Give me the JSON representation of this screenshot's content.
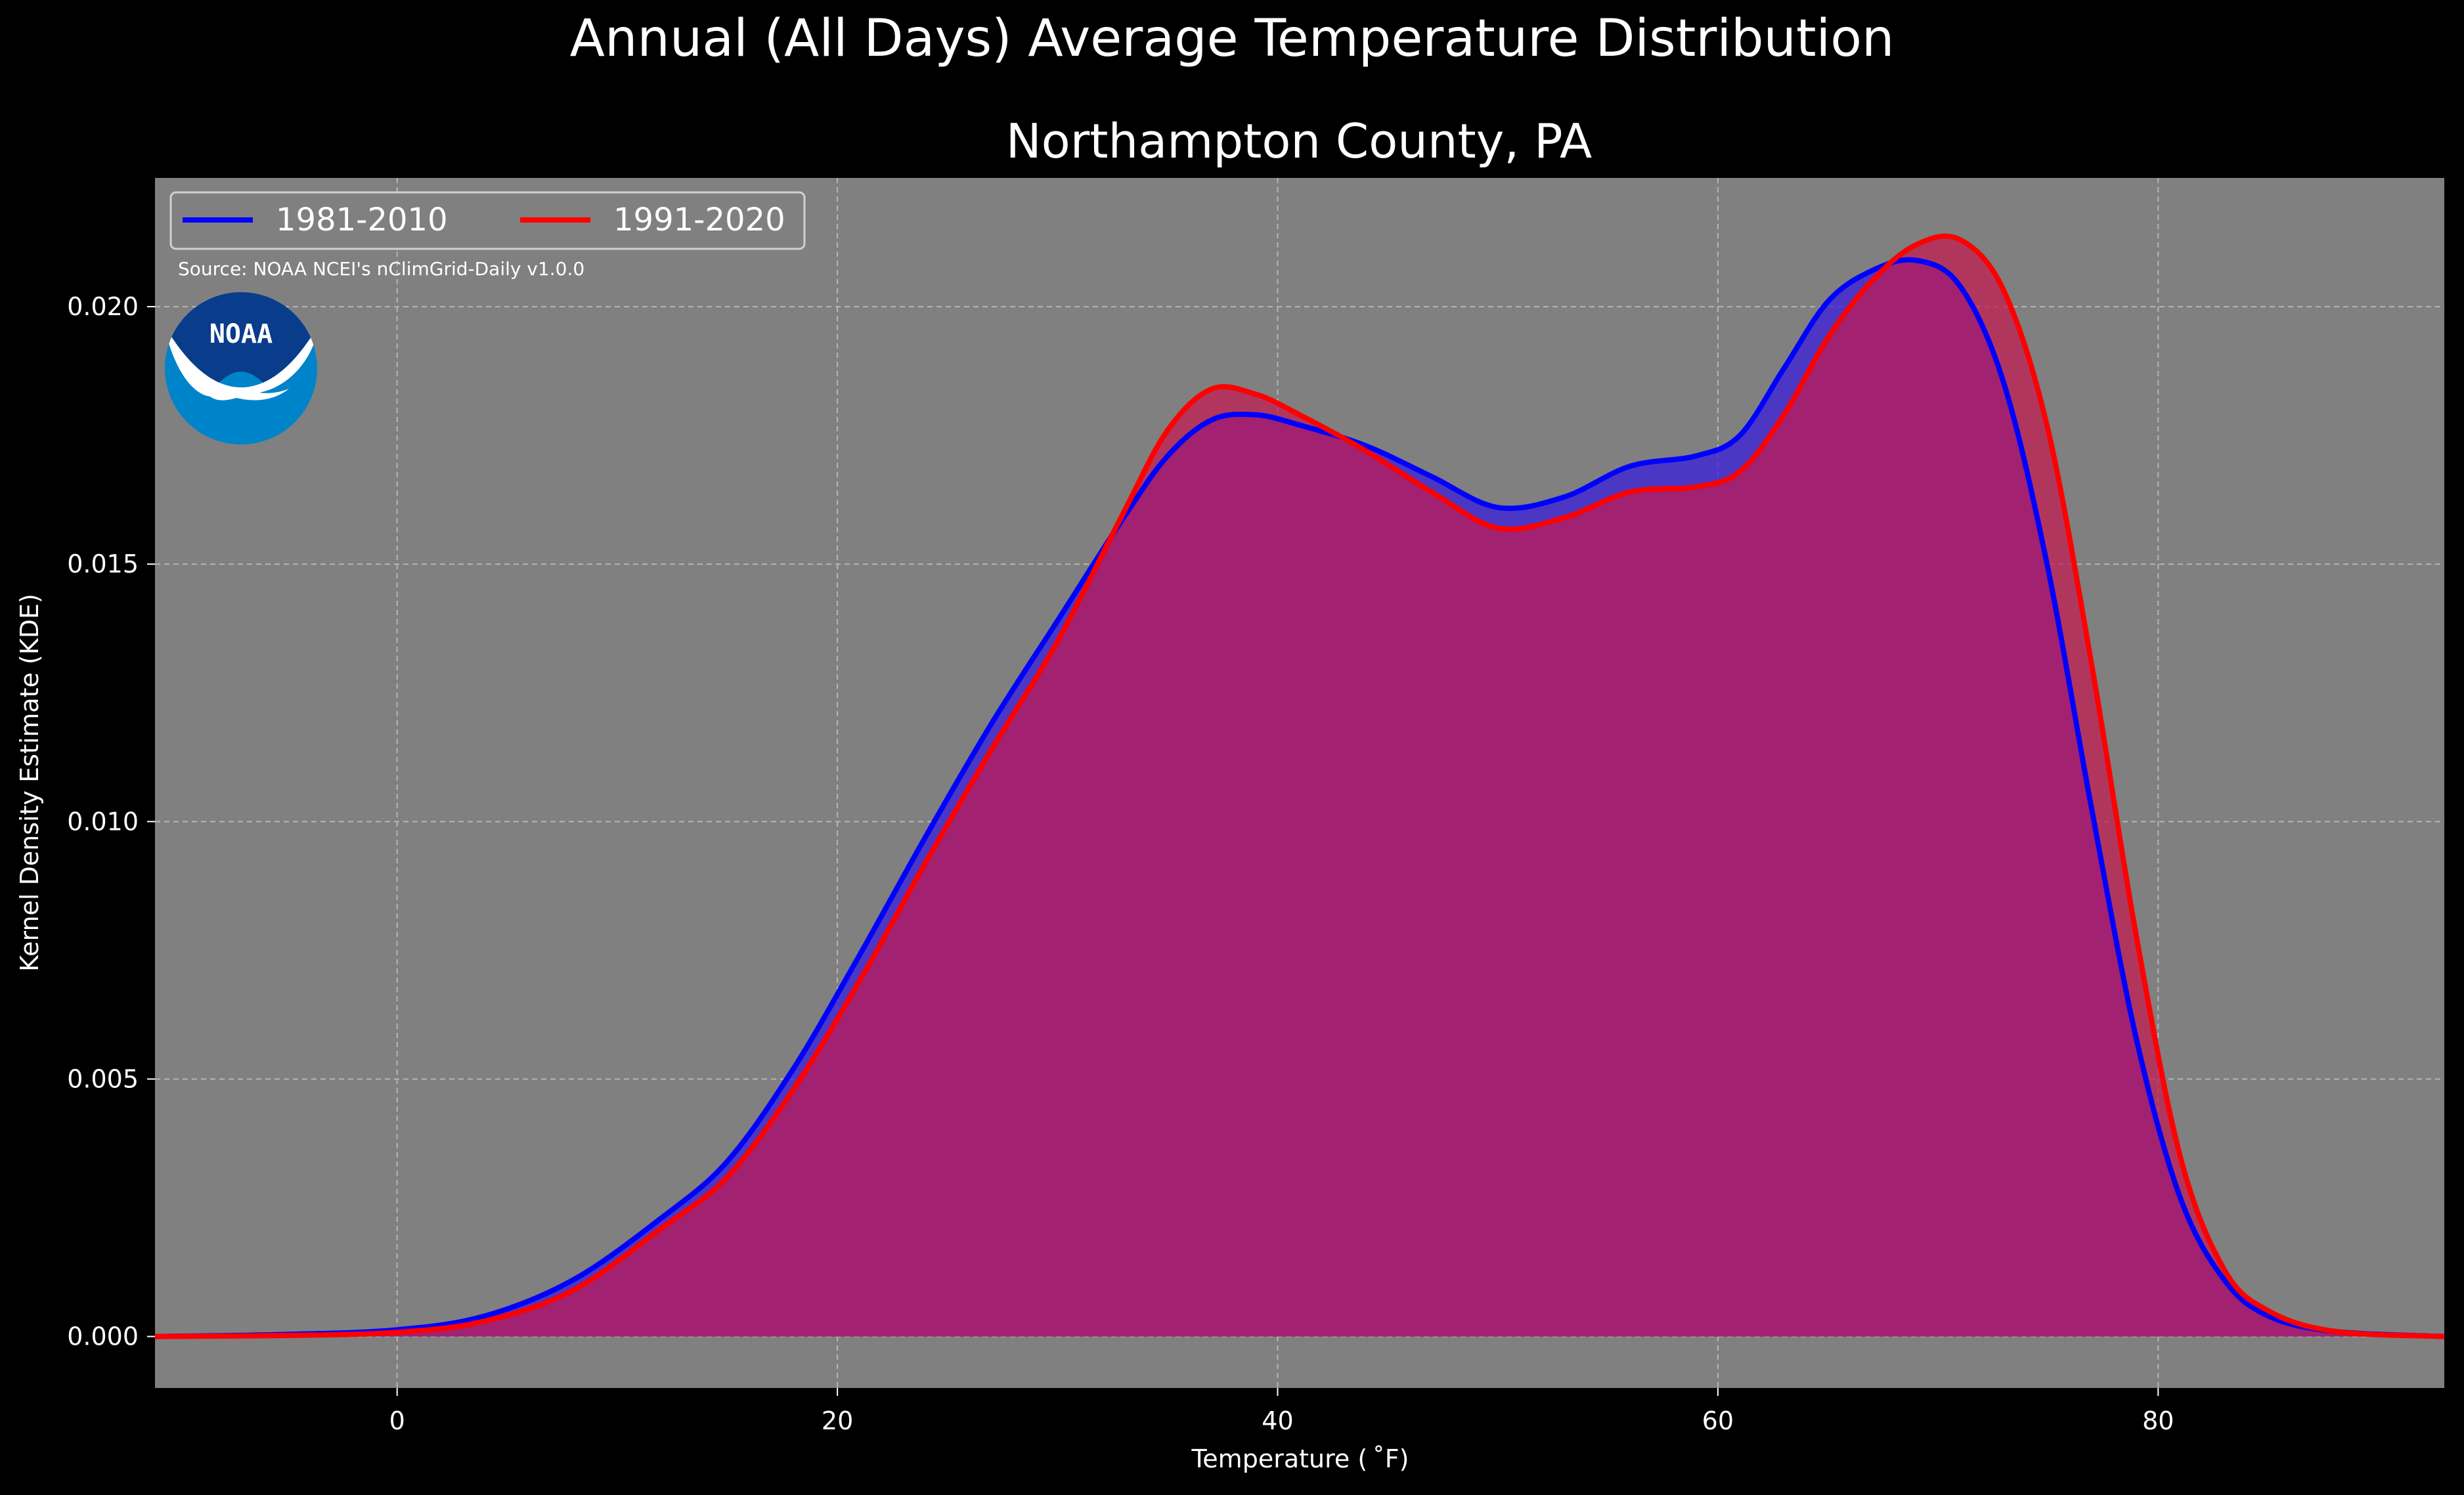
{
  "chart_data": {
    "type": "area",
    "suptitle": "Annual (All Days) Average Temperature Distribution",
    "title": "Northampton County, PA",
    "xlabel": "Temperature ($^\\circ$F)",
    "xlabel_display": "Temperature ( ˚F)",
    "ylabel": "Kernel Density Estimate (KDE)",
    "xlim": [
      -11,
      93
    ],
    "ylim": [
      -0.001,
      0.0225
    ],
    "xticks": [
      0,
      20,
      40,
      60,
      80
    ],
    "xtick_labels": [
      "0",
      "20",
      "40",
      "60",
      "80"
    ],
    "yticks": [
      0.0,
      0.005,
      0.01,
      0.015,
      0.02
    ],
    "ytick_labels": [
      "0.000",
      "0.005",
      "0.010",
      "0.015",
      "0.020"
    ],
    "grid": true,
    "legend_placement": "top-left",
    "source_note": "Source: NOAA NCEI's nClimGrid-Daily v1.0.0",
    "logo_text": "NOAA",
    "colors": {
      "figure_bg": "#000000",
      "axes_bg": "#808080",
      "grid": "#b5b5b5",
      "series_1981": "#0000ff",
      "series_1991": "#ff0000",
      "fill_1981": "rgba(60,35,215,0.78)",
      "fill_1991": "rgba(196,25,80,0.72)",
      "noaa_dark": "#0a3c8c",
      "noaa_light": "#0084c9"
    },
    "series": [
      {
        "name": "1981-2010",
        "color": "#0000ff",
        "points": [
          [
            -11,
            0.0
          ],
          [
            -5,
            4e-05
          ],
          [
            0,
            0.00013
          ],
          [
            4,
            0.0004
          ],
          [
            8,
            0.0011
          ],
          [
            12,
            0.0023
          ],
          [
            15,
            0.0034
          ],
          [
            18,
            0.0052
          ],
          [
            21,
            0.0074
          ],
          [
            24,
            0.0097
          ],
          [
            27,
            0.0119
          ],
          [
            30,
            0.0139
          ],
          [
            33,
            0.0159
          ],
          [
            35,
            0.0171
          ],
          [
            37,
            0.0178
          ],
          [
            39,
            0.0179
          ],
          [
            41,
            0.0177
          ],
          [
            44,
            0.0173
          ],
          [
            47,
            0.0167
          ],
          [
            50,
            0.0161
          ],
          [
            53,
            0.0163
          ],
          [
            56,
            0.0169
          ],
          [
            59,
            0.0171
          ],
          [
            61,
            0.0175
          ],
          [
            63,
            0.0188
          ],
          [
            65,
            0.0201
          ],
          [
            67,
            0.0207
          ],
          [
            69,
            0.0209
          ],
          [
            71,
            0.0204
          ],
          [
            73,
            0.0185
          ],
          [
            75,
            0.0149
          ],
          [
            77,
            0.0102
          ],
          [
            79,
            0.0058
          ],
          [
            81,
            0.0027
          ],
          [
            83,
            0.0011
          ],
          [
            85,
            0.0004
          ],
          [
            88,
            0.0001
          ],
          [
            93,
            0.0
          ]
        ]
      },
      {
        "name": "1991-2020",
        "color": "#ff0000",
        "points": [
          [
            -11,
            0.0
          ],
          [
            -5,
            2e-05
          ],
          [
            0,
            8e-05
          ],
          [
            4,
            0.0003
          ],
          [
            8,
            0.0009
          ],
          [
            12,
            0.0021
          ],
          [
            15,
            0.0031
          ],
          [
            18,
            0.0048
          ],
          [
            21,
            0.0069
          ],
          [
            24,
            0.0092
          ],
          [
            27,
            0.0114
          ],
          [
            30,
            0.0135
          ],
          [
            33,
            0.016
          ],
          [
            35,
            0.0176
          ],
          [
            37,
            0.0184
          ],
          [
            39,
            0.0183
          ],
          [
            41,
            0.0179
          ],
          [
            44,
            0.0172
          ],
          [
            47,
            0.0164
          ],
          [
            50,
            0.0157
          ],
          [
            53,
            0.0159
          ],
          [
            56,
            0.0164
          ],
          [
            59,
            0.0165
          ],
          [
            61,
            0.0168
          ],
          [
            63,
            0.0179
          ],
          [
            65,
            0.0194
          ],
          [
            67,
            0.0205
          ],
          [
            69,
            0.0212
          ],
          [
            71,
            0.0213
          ],
          [
            73,
            0.0203
          ],
          [
            75,
            0.0176
          ],
          [
            77,
            0.013
          ],
          [
            79,
            0.0078
          ],
          [
            81,
            0.0035
          ],
          [
            83,
            0.0013
          ],
          [
            85,
            0.0005
          ],
          [
            88,
            0.0001
          ],
          [
            93,
            0.0
          ]
        ]
      }
    ]
  }
}
